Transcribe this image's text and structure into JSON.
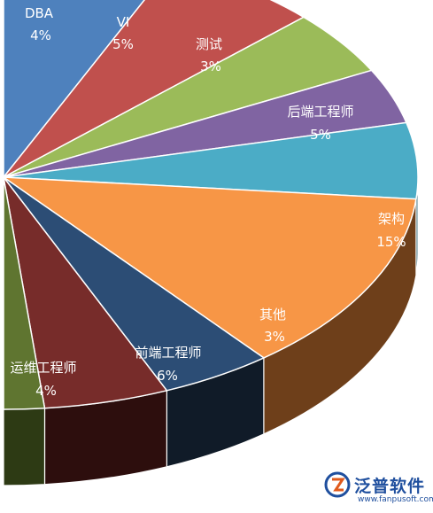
{
  "chart_data": {
    "type": "pie",
    "slices": [
      {
        "label": "DBA",
        "pct_text": "4%",
        "color": "#4E81BD",
        "side": "#2B4968"
      },
      {
        "label": "VI",
        "pct_text": "5%",
        "color": "#C0504D",
        "side": "#6B2C2A"
      },
      {
        "label": "测试",
        "pct_text": "3%",
        "color": "#9BBB59",
        "side": "#56692F"
      },
      {
        "label": "",
        "pct_text": "",
        "color": "#8064A2",
        "side": "#463757"
      },
      {
        "label": "后端工程师",
        "pct_text": "5%",
        "color": "#4BACC6",
        "side": "#27606F"
      },
      {
        "label": "架构",
        "pct_text": "15%",
        "color": "#F79646",
        "side": "#6E3F1A"
      },
      {
        "label": "其他",
        "pct_text": "3%",
        "color": "#2C4D75",
        "side": "#101B28"
      },
      {
        "label": "前端工程师",
        "pct_text": "6%",
        "color": "#772C2A",
        "side": "#2D0E0D"
      },
      {
        "label": "运维工程师",
        "pct_text": "4%",
        "color": "#5F7530",
        "side": "#2D3A14"
      }
    ]
  },
  "watermark": {
    "name": "泛普软件",
    "site": "www.fanpusoft.com"
  }
}
